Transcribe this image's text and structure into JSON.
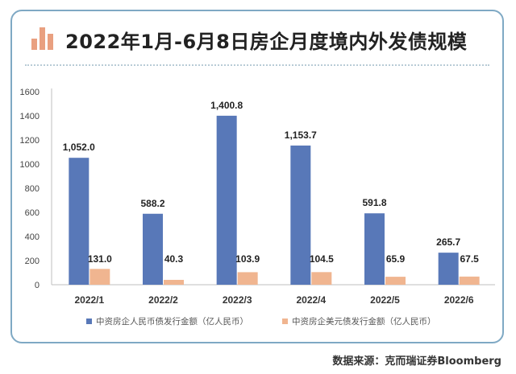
{
  "header": {
    "title": "2022年1月-6月8日房企月度境内外发债规模",
    "icon": "bar-chart-icon"
  },
  "source": "数据来源：克而瑞证券Bloomberg",
  "colors": {
    "domestic": "#5878b8",
    "overseas": "#f0b590",
    "border": "#7fa9c4",
    "icon": "#e9a080"
  },
  "chart_data": {
    "type": "bar",
    "categories": [
      "2022/1",
      "2022/2",
      "2022/3",
      "2022/4",
      "2022/5",
      "2022/6"
    ],
    "series": [
      {
        "name": "中资房企人民币债发行金额（亿人民币）",
        "values": [
          1052.0,
          588.2,
          1400.8,
          1153.7,
          591.8,
          265.7
        ],
        "labels": [
          "1,052.0",
          "588.2",
          "1,400.8",
          "1,153.7",
          "591.8",
          "265.7"
        ]
      },
      {
        "name": "中资房企美元债发行金额（亿人民币）",
        "values": [
          131.0,
          40.3,
          103.9,
          104.5,
          65.9,
          67.5
        ],
        "labels": [
          "131.0",
          "40.3",
          "103.9",
          "104.5",
          "65.9",
          "67.5"
        ]
      }
    ],
    "yticks": [
      0,
      200,
      400,
      600,
      800,
      1000,
      1200,
      1400,
      1600
    ],
    "ylim": [
      0,
      1600
    ],
    "legend": "bottom",
    "grid": false
  }
}
